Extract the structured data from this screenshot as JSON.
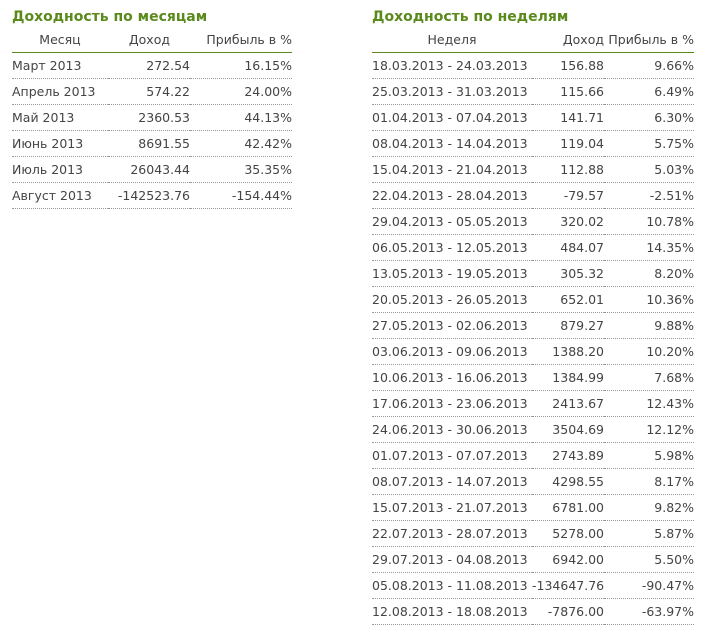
{
  "months": {
    "title": "Доходность по месяцам",
    "headers": [
      "Месяц",
      "Доход",
      "Прибыль в %"
    ],
    "rows": [
      [
        "Март 2013",
        "272.54",
        "16.15%"
      ],
      [
        "Апрель 2013",
        "574.22",
        "24.00%"
      ],
      [
        "Май 2013",
        "2360.53",
        "44.13%"
      ],
      [
        "Июнь 2013",
        "8691.55",
        "42.42%"
      ],
      [
        "Июль 2013",
        "26043.44",
        "35.35%"
      ],
      [
        "Август 2013",
        "-142523.76",
        "-154.44%"
      ]
    ]
  },
  "weeks": {
    "title": "Доходность по неделям",
    "headers": [
      "Неделя",
      "Доход",
      "Прибыль в %"
    ],
    "rows": [
      [
        "18.03.2013 - 24.03.2013",
        "156.88",
        "9.66%"
      ],
      [
        "25.03.2013 - 31.03.2013",
        "115.66",
        "6.49%"
      ],
      [
        "01.04.2013 - 07.04.2013",
        "141.71",
        "6.30%"
      ],
      [
        "08.04.2013 - 14.04.2013",
        "119.04",
        "5.75%"
      ],
      [
        "15.04.2013 - 21.04.2013",
        "112.88",
        "5.03%"
      ],
      [
        "22.04.2013 - 28.04.2013",
        "-79.57",
        "-2.51%"
      ],
      [
        "29.04.2013 - 05.05.2013",
        "320.02",
        "10.78%"
      ],
      [
        "06.05.2013 - 12.05.2013",
        "484.07",
        "14.35%"
      ],
      [
        "13.05.2013 - 19.05.2013",
        "305.32",
        "8.20%"
      ],
      [
        "20.05.2013 - 26.05.2013",
        "652.01",
        "10.36%"
      ],
      [
        "27.05.2013 - 02.06.2013",
        "879.27",
        "9.88%"
      ],
      [
        "03.06.2013 - 09.06.2013",
        "1388.20",
        "10.20%"
      ],
      [
        "10.06.2013 - 16.06.2013",
        "1384.99",
        "7.68%"
      ],
      [
        "17.06.2013 - 23.06.2013",
        "2413.67",
        "12.43%"
      ],
      [
        "24.06.2013 - 30.06.2013",
        "3504.69",
        "12.12%"
      ],
      [
        "01.07.2013 - 07.07.2013",
        "2743.89",
        "5.98%"
      ],
      [
        "08.07.2013 - 14.07.2013",
        "4298.55",
        "8.17%"
      ],
      [
        "15.07.2013 - 21.07.2013",
        "6781.00",
        "9.82%"
      ],
      [
        "22.07.2013 - 28.07.2013",
        "5278.00",
        "5.87%"
      ],
      [
        "29.07.2013 - 04.08.2013",
        "6942.00",
        "5.50%"
      ],
      [
        "05.08.2013 - 11.08.2013",
        "-134647.76",
        "-90.47%"
      ],
      [
        "12.08.2013 - 18.08.2013",
        "-7876.00",
        "-63.97%"
      ]
    ]
  },
  "colors": {
    "title_green": "#5a8a1c",
    "text": "#444444"
  }
}
